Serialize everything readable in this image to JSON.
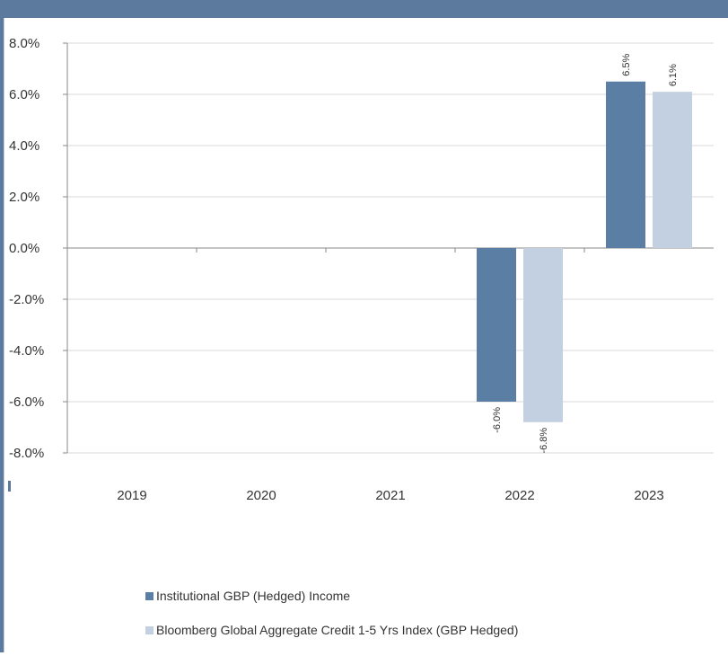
{
  "chart_data": {
    "type": "bar",
    "title": "",
    "xlabel": "",
    "ylabel": "",
    "categories": [
      "2019",
      "2020",
      "2021",
      "2022",
      "2023"
    ],
    "series": [
      {
        "name": "Institutional GBP (Hedged) Income",
        "color": "#5b7fa4",
        "values": [
          null,
          null,
          null,
          -6.0,
          6.5
        ],
        "labels": [
          null,
          null,
          null,
          "-6.0%",
          "6.5%"
        ]
      },
      {
        "name": "Bloomberg Global Aggregate Credit 1-5 Yrs Index (GBP Hedged)",
        "color": "#c3d0e2",
        "values": [
          null,
          null,
          null,
          -6.8,
          6.1
        ],
        "labels": [
          null,
          null,
          null,
          "-6.8%",
          "6.1%"
        ]
      }
    ],
    "ylim": [
      -8,
      8
    ],
    "yticks": [
      8,
      6,
      4,
      2,
      0,
      -2,
      -4,
      -6,
      -8
    ],
    "ytick_labels": [
      "8.0%",
      "6.0%",
      "4.0%",
      "2.0%",
      "0.0%",
      "-2.0%",
      "-4.0%",
      "-6.0%",
      "-8.0%"
    ],
    "grid": true,
    "legend_position": "bottom"
  },
  "colors": {
    "frame": "#5b7a9e",
    "grid": "#d9d9d9",
    "axis": "#888888"
  }
}
